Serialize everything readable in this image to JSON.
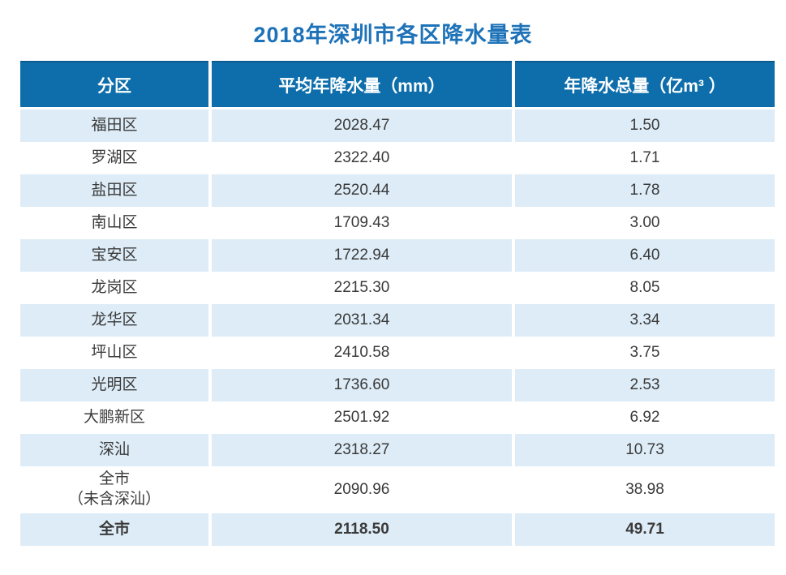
{
  "page": {
    "title": "2018年深圳市各区降水量表"
  },
  "colors": {
    "title_text": "#1e73b8",
    "header_bg": "#0d6eab",
    "header_text": "#ffffff",
    "row_alt_bg": "#ddecf7",
    "body_text": "#3a3a3a"
  },
  "chart_data": {
    "type": "table",
    "title": "2018年深圳市各区降水量表",
    "columns": [
      "分区",
      "平均年降水量（mm）",
      "年降水总量（亿m³ ）"
    ],
    "rows": [
      [
        "福田区",
        "2028.47",
        "1.50"
      ],
      [
        "罗湖区",
        "2322.40",
        "1.71"
      ],
      [
        "盐田区",
        "2520.44",
        "1.78"
      ],
      [
        "南山区",
        "1709.43",
        "3.00"
      ],
      [
        "宝安区",
        "1722.94",
        "6.40"
      ],
      [
        "龙岗区",
        "2215.30",
        "8.05"
      ],
      [
        "龙华区",
        "2031.34",
        "3.34"
      ],
      [
        "坪山区",
        "2410.58",
        "3.75"
      ],
      [
        "光明区",
        "1736.60",
        "2.53"
      ],
      [
        "大鹏新区",
        "2501.92",
        "6.92"
      ],
      [
        "深汕",
        "2318.27",
        "10.73"
      ],
      [
        "全市\n（未含深汕）",
        "2090.96",
        "38.98"
      ],
      [
        "全市",
        "2118.50",
        "49.71"
      ]
    ]
  }
}
